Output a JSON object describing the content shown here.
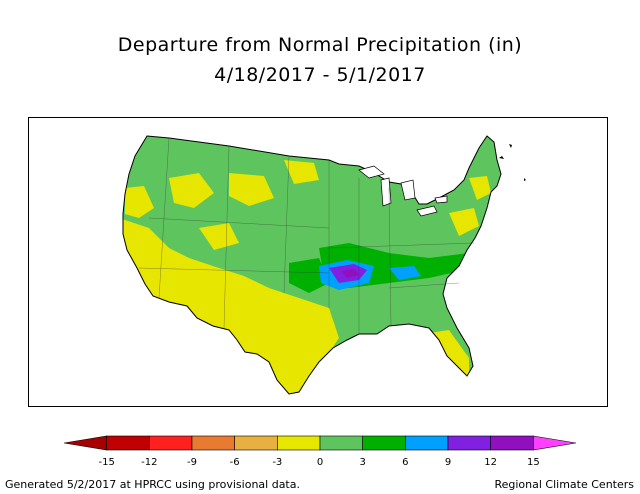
{
  "title": "Departure from Normal Precipitation (in)",
  "date_range": "4/18/2017 - 5/1/2017",
  "legend": {
    "ticks": [
      "-15",
      "-12",
      "-9",
      "-6",
      "-3",
      "0",
      "3",
      "6",
      "9",
      "12",
      "15"
    ],
    "colors": [
      "#a80000",
      "#c00000",
      "#ff2020",
      "#e87b30",
      "#e8b040",
      "#e6e600",
      "#5ec45e",
      "#00b000",
      "#00a0ff",
      "#8020e0",
      "#9010c0",
      "#ff40ff"
    ]
  },
  "footer": {
    "generated": "Generated 5/2/2017 at HPRCC using provisional data.",
    "source": "Regional Climate Centers"
  }
}
